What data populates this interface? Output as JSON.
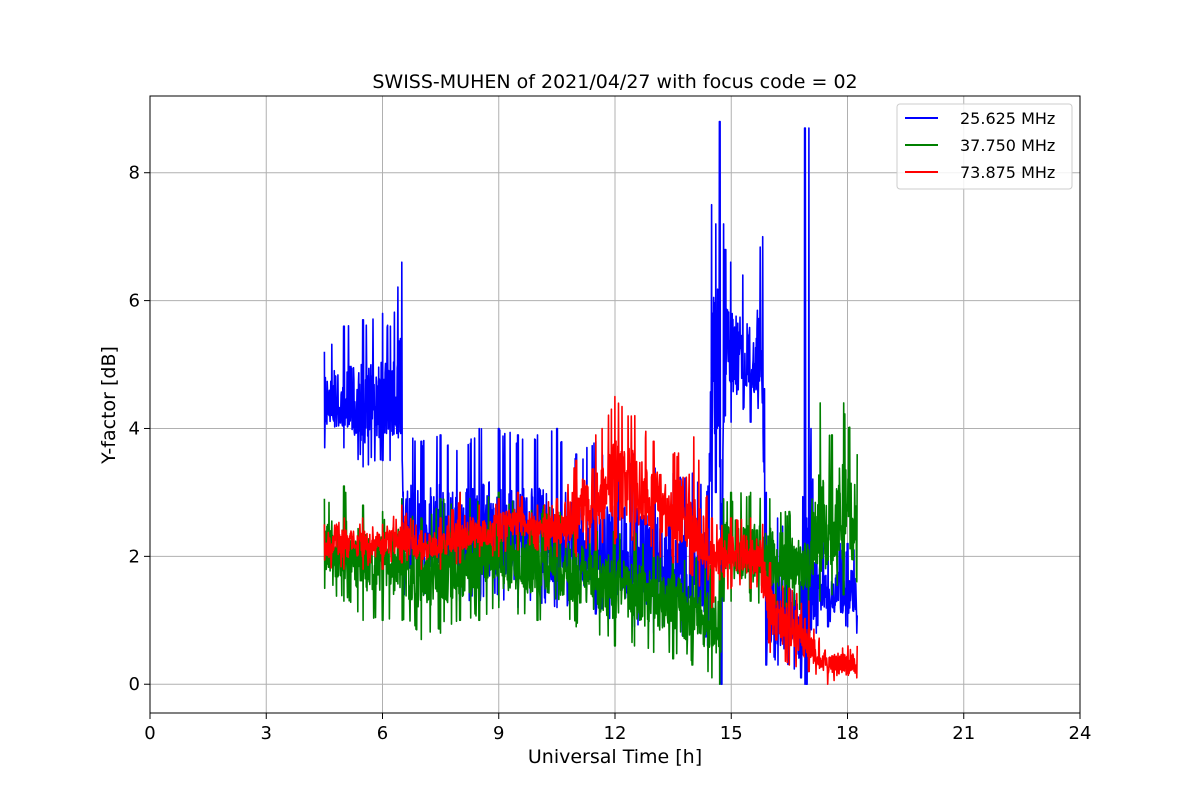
{
  "chart_data": {
    "type": "line",
    "title": "SWISS-MUHEN of 2021/04/27 with focus code = 02",
    "xlabel": "Universal Time [h]",
    "ylabel": "Y-factor [dB]",
    "xlim": [
      0,
      24
    ],
    "ylim": [
      -0.45,
      9.2
    ],
    "x_ticks": [
      0,
      3,
      6,
      9,
      12,
      15,
      18,
      21,
      24
    ],
    "x_tick_labels": [
      "0",
      "3",
      "6",
      "9",
      "12",
      "15",
      "18",
      "21",
      "24"
    ],
    "y_ticks": [
      0,
      2,
      4,
      6,
      8
    ],
    "y_tick_labels": [
      "0",
      "2",
      "4",
      "6",
      "8"
    ],
    "grid": true,
    "legend_position": "top-right",
    "series": [
      {
        "name": "25.625 MHz",
        "color": "#0000ff",
        "x": [
          4.5,
          5.0,
          5.5,
          6.0,
          6.2,
          6.5,
          6.55,
          7.0,
          7.5,
          8.0,
          8.5,
          9.0,
          9.5,
          10.0,
          10.5,
          11.0,
          11.5,
          12.0,
          12.5,
          13.0,
          13.5,
          14.0,
          14.4,
          14.5,
          14.6,
          14.7,
          14.75,
          14.8,
          14.85,
          15.0,
          15.3,
          15.5,
          15.8,
          15.9,
          16.2,
          16.5,
          16.8,
          16.9,
          16.95,
          17.0,
          17.2,
          17.5,
          17.8,
          18.0,
          18.25
        ],
        "y_center": [
          4.4,
          4.3,
          4.2,
          4.3,
          4.2,
          4.2,
          2.3,
          2.2,
          2.3,
          2.2,
          2.2,
          2.1,
          2.1,
          2.1,
          2.0,
          2.0,
          2.0,
          1.9,
          1.8,
          1.7,
          1.7,
          1.6,
          1.5,
          4.4,
          4.6,
          4.8,
          0.3,
          4.8,
          4.9,
          4.9,
          5.0,
          4.8,
          4.9,
          1.0,
          0.9,
          0.8,
          0.7,
          0.7,
          0.5,
          0.7,
          1.5,
          1.5,
          1.4,
          1.4,
          1.3
        ],
        "y_max": [
          5.2,
          5.6,
          5.7,
          5.8,
          5.6,
          6.6,
          3.9,
          3.8,
          3.9,
          3.7,
          4.0,
          4.0,
          3.9,
          3.9,
          4.0,
          3.6,
          3.8,
          3.5,
          3.6,
          3.5,
          3.3,
          3.3,
          3.1,
          7.5,
          7.2,
          8.8,
          2.5,
          7.2,
          6.8,
          6.6,
          6.4,
          6.3,
          7.0,
          3.0,
          2.6,
          2.4,
          1.6,
          8.7,
          2.6,
          8.7,
          2.3,
          2.2,
          2.2,
          2.2,
          2.1
        ],
        "y_min": [
          3.7,
          3.7,
          3.4,
          3.5,
          3.5,
          3.5,
          1.4,
          1.4,
          1.4,
          1.3,
          1.3,
          1.3,
          1.2,
          1.2,
          1.2,
          1.2,
          1.1,
          1.0,
          0.9,
          0.8,
          0.8,
          0.7,
          0.6,
          2.0,
          3.0,
          3.4,
          0.0,
          4.1,
          4.2,
          4.1,
          4.3,
          4.1,
          4.4,
          0.3,
          0.3,
          0.2,
          0.1,
          0.0,
          0.0,
          0.2,
          0.8,
          0.9,
          0.8,
          0.9,
          0.8
        ]
      },
      {
        "name": "37.750 MHz",
        "color": "#008000",
        "x": [
          4.5,
          5.0,
          5.5,
          6.0,
          6.5,
          7.0,
          7.5,
          8.0,
          8.5,
          9.0,
          9.5,
          10.0,
          10.5,
          11.0,
          11.5,
          12.0,
          12.5,
          13.0,
          13.5,
          14.0,
          14.5,
          14.7,
          14.8,
          15.0,
          15.5,
          16.0,
          16.5,
          17.0,
          17.3,
          17.6,
          17.9,
          18.25
        ],
        "y_center": [
          2.1,
          2.0,
          1.9,
          1.9,
          1.9,
          1.7,
          1.7,
          1.8,
          1.9,
          1.9,
          1.8,
          1.8,
          1.7,
          1.7,
          1.6,
          1.5,
          1.4,
          1.3,
          1.2,
          1.1,
          1.0,
          0.9,
          2.1,
          2.1,
          2.0,
          1.9,
          1.9,
          1.9,
          2.3,
          2.4,
          2.4,
          2.4
        ],
        "y_max": [
          2.9,
          3.1,
          2.8,
          2.7,
          2.9,
          2.6,
          2.9,
          3.0,
          3.0,
          3.0,
          2.9,
          2.8,
          2.8,
          2.6,
          2.5,
          2.4,
          2.4,
          2.1,
          2.2,
          2.0,
          1.9,
          1.8,
          2.9,
          3.0,
          3.0,
          2.9,
          2.7,
          2.5,
          4.4,
          3.9,
          4.4,
          3.6
        ],
        "y_min": [
          1.5,
          1.3,
          1.0,
          1.0,
          1.0,
          0.7,
          0.8,
          1.0,
          1.0,
          1.2,
          1.1,
          1.0,
          1.0,
          0.9,
          0.8,
          0.6,
          0.6,
          0.5,
          0.4,
          0.3,
          0.1,
          0.0,
          1.3,
          1.3,
          1.3,
          1.1,
          1.1,
          1.1,
          1.3,
          1.4,
          1.4,
          1.6
        ]
      },
      {
        "name": "73.875 MHz",
        "color": "#ff0000",
        "x": [
          4.5,
          5.0,
          5.5,
          6.0,
          6.5,
          7.0,
          7.5,
          8.0,
          8.5,
          9.0,
          9.5,
          10.0,
          10.5,
          11.0,
          11.5,
          12.0,
          12.5,
          13.0,
          13.5,
          14.0,
          14.5,
          15.0,
          15.5,
          15.8,
          16.0,
          16.5,
          17.0,
          17.5,
          18.0,
          18.25
        ],
        "y_center": [
          2.1,
          2.2,
          2.2,
          2.2,
          2.3,
          2.1,
          2.2,
          2.3,
          2.3,
          2.4,
          2.5,
          2.5,
          2.4,
          2.6,
          2.9,
          3.0,
          3.0,
          2.8,
          2.7,
          2.5,
          1.9,
          2.1,
          2.0,
          2.0,
          1.0,
          0.9,
          0.6,
          0.3,
          0.3,
          0.3
        ],
        "y_max": [
          2.5,
          2.6,
          2.6,
          2.5,
          2.8,
          2.4,
          2.6,
          3.0,
          2.8,
          2.9,
          3.0,
          2.8,
          2.9,
          3.5,
          3.9,
          4.5,
          4.2,
          3.8,
          3.6,
          4.0,
          2.6,
          2.6,
          2.6,
          2.5,
          1.9,
          1.5,
          1.3,
          0.7,
          0.6,
          0.6
        ],
        "y_min": [
          1.8,
          1.8,
          1.8,
          1.8,
          1.9,
          1.8,
          1.8,
          1.9,
          2.0,
          2.0,
          2.1,
          2.1,
          2.0,
          2.0,
          2.1,
          2.2,
          2.1,
          2.0,
          1.9,
          1.7,
          1.2,
          1.5,
          1.5,
          1.4,
          0.5,
          0.3,
          0.2,
          0.0,
          0.0,
          0.1
        ]
      }
    ]
  }
}
